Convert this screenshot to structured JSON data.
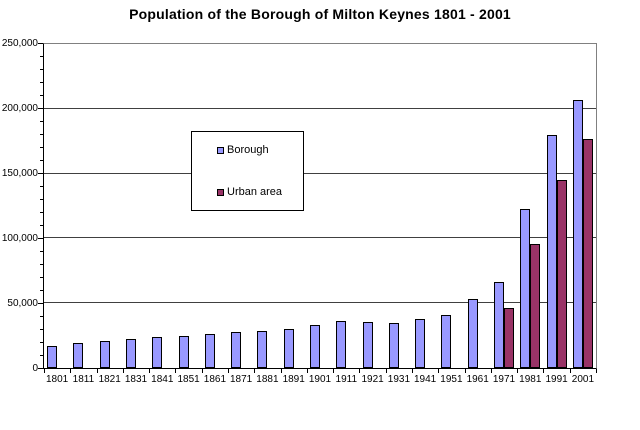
{
  "chart_data": {
    "type": "bar",
    "title": "Population of the Borough of Milton Keynes 1801 - 2001",
    "xlabel": "",
    "ylabel": "",
    "ylim": [
      0,
      250000
    ],
    "ytick_interval": 50000,
    "ytick_minor_interval": 10000,
    "ytick_labels": [
      "0",
      "50,000",
      "100,000",
      "150,000",
      "200,000",
      "250,000"
    ],
    "grid": true,
    "legend_position": "overlay-center-left",
    "categories": [
      "1801",
      "1811",
      "1821",
      "1831",
      "1841",
      "1851",
      "1861",
      "1871",
      "1881",
      "1891",
      "1901",
      "1911",
      "1921",
      "1931",
      "1941",
      "1951",
      "1961",
      "1971",
      "1981",
      "1991",
      "2001"
    ],
    "series": [
      {
        "name": "Borough",
        "color": "#9999FF",
        "values": [
          17000,
          19000,
          21000,
          22500,
          24000,
          24500,
          26000,
          27500,
          28500,
          30000,
          33500,
          36500,
          35500,
          35000,
          38000,
          41000,
          53000,
          66500,
          123000,
          179500,
          207000
        ]
      },
      {
        "name": "Urban area",
        "color": "#993366",
        "values": [
          null,
          null,
          null,
          null,
          null,
          null,
          null,
          null,
          null,
          null,
          null,
          null,
          null,
          null,
          null,
          null,
          null,
          46000,
          96000,
          145000,
          177000
        ]
      }
    ]
  },
  "legend": {
    "items": [
      {
        "label": "Borough",
        "color": "#9999FF"
      },
      {
        "label": "Urban area",
        "color": "#993366"
      }
    ]
  },
  "colors": {
    "plot_border": "#808080",
    "axis_line": "#000000",
    "gridline": "#404040",
    "background": "#FFFFFF"
  }
}
